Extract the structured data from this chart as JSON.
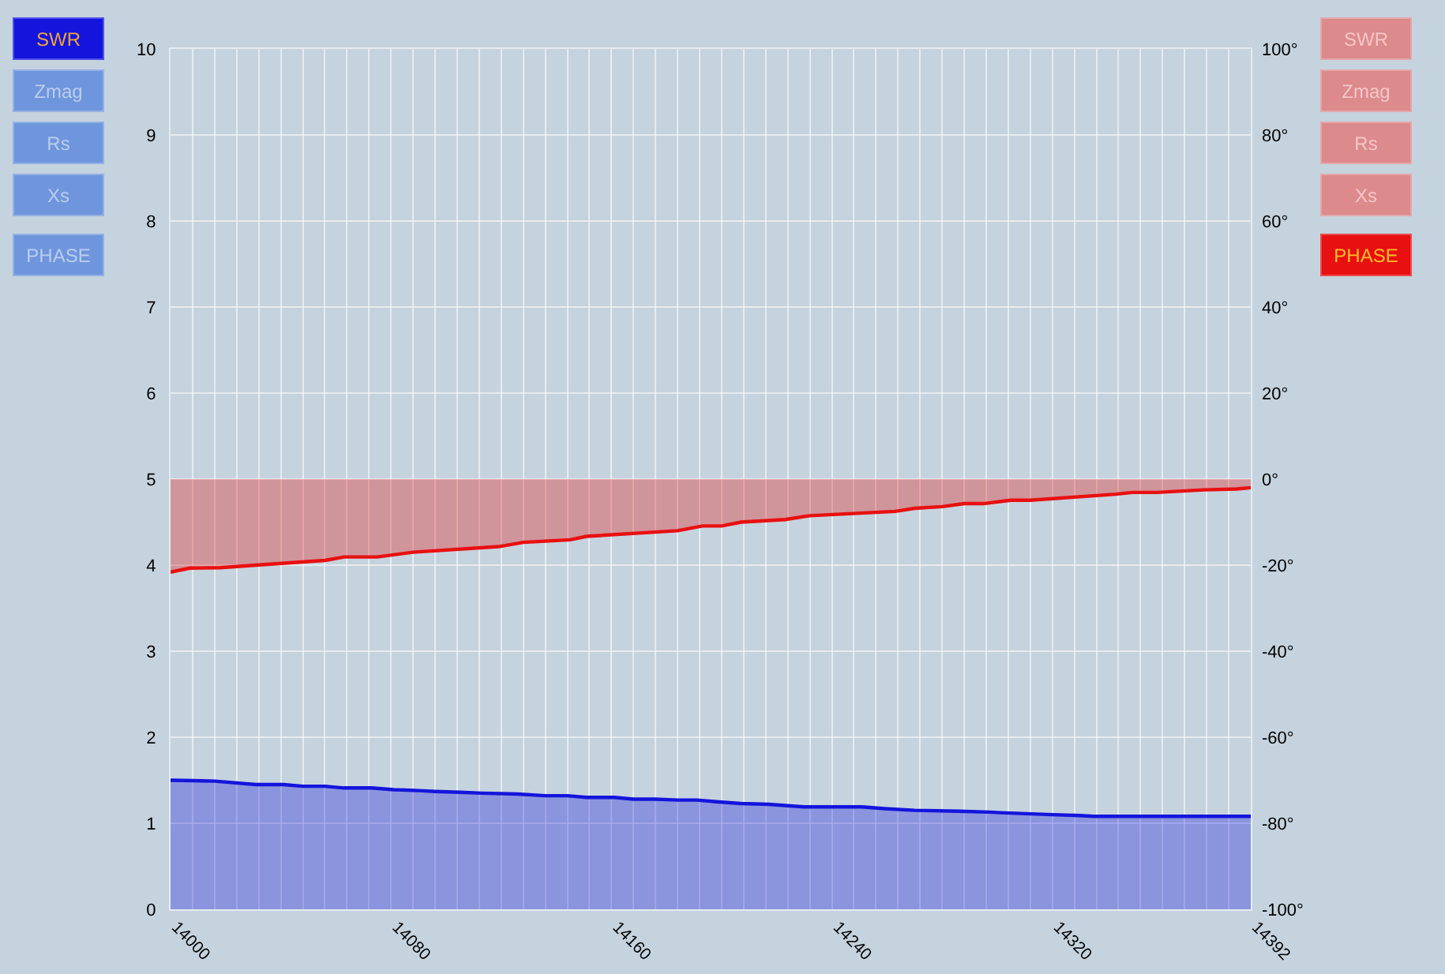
{
  "chart_data": {
    "type": "area",
    "annotations": [
      "Zmag",
      "Rs",
      "Xs",
      "PHASE",
      "SWR",
      "Zmag",
      "Rs",
      "Xs"
    ],
    "xlim": [
      14000,
      14392
    ],
    "xticks": [
      14000,
      {
        "value": 14008,
        "label": null
      },
      {
        "value": 14016,
        "label": null
      },
      {
        "value": 14024,
        "label": null
      },
      {
        "value": 14032,
        "label": null
      },
      {
        "value": 14040,
        "label": null
      },
      {
        "value": 14048,
        "label": null
      },
      {
        "value": 14056,
        "label": null
      },
      {
        "value": 14064,
        "label": null
      },
      {
        "value": 14072,
        "label": null
      },
      14080,
      {
        "value": 14088,
        "label": null
      },
      {
        "value": 14096,
        "label": null
      },
      {
        "value": 14104,
        "label": null
      },
      {
        "value": 14112,
        "label": null
      },
      {
        "value": 14120,
        "label": null
      },
      {
        "value": 14128,
        "label": null
      },
      {
        "value": 14136,
        "label": null
      },
      {
        "value": 14144,
        "label": null
      },
      {
        "value": 14152,
        "label": null
      },
      14160,
      {
        "value": 14168,
        "label": null
      },
      {
        "value": 14176,
        "label": null
      },
      {
        "value": 14184,
        "label": null
      },
      {
        "value": 14192,
        "label": null
      },
      {
        "value": 14200,
        "label": null
      },
      {
        "value": 14208,
        "label": null
      },
      {
        "value": 14216,
        "label": null
      },
      {
        "value": 14224,
        "label": null
      },
      {
        "value": 14232,
        "label": null
      },
      14240,
      {
        "value": 14248,
        "label": null
      },
      {
        "value": 14256,
        "label": null
      },
      {
        "value": 14264,
        "label": null
      },
      {
        "value": 14272,
        "label": null
      },
      {
        "value": 14280,
        "label": null
      },
      {
        "value": 14288,
        "label": null
      },
      {
        "value": 14296,
        "label": null
      },
      {
        "value": 14304,
        "label": null
      },
      {
        "value": 14312,
        "label": null
      },
      14320,
      {
        "value": 14328,
        "label": null
      },
      {
        "value": 14336,
        "label": null
      },
      {
        "value": 14344,
        "label": null
      },
      {
        "value": 14352,
        "label": null
      },
      {
        "value": 14360,
        "label": null
      },
      {
        "value": 14368,
        "label": null
      },
      {
        "value": 14376,
        "label": null
      },
      {
        "value": 14384,
        "label": null
      },
      14392
    ],
    "ylim": [
      0,
      10
    ],
    "yticks": [
      0,
      1,
      2,
      3,
      4,
      5,
      6,
      7,
      8,
      9,
      10
    ],
    "y2lim": [
      -100,
      100
    ],
    "y2ticks": [
      {
        "value": -100,
        "label": "-100°"
      },
      {
        "value": -80,
        "label": "-80°"
      },
      {
        "value": -60,
        "label": "-60°"
      },
      {
        "value": -40,
        "label": "-40°"
      },
      {
        "value": -20,
        "label": "-20°"
      },
      {
        "value": 0,
        "label": "0°"
      },
      {
        "value": 20,
        "label": "20°"
      },
      {
        "value": 40,
        "label": "40°"
      },
      {
        "value": 60,
        "label": "60°"
      },
      {
        "value": 80,
        "label": "80°"
      },
      {
        "value": 100,
        "label": "100°"
      }
    ],
    "grid": true,
    "series": [
      {
        "name": "SWR",
        "color": "#1414dc",
        "axis": "y",
        "x": [
          14000,
          14016,
          14031,
          14041,
          14048,
          14056,
          14063,
          14073,
          14081,
          14090,
          14096,
          14105,
          14113,
          14126,
          14136,
          14144,
          14151,
          14161,
          14168,
          14176,
          14184,
          14191,
          14198,
          14207,
          14217,
          14230,
          14251,
          14259,
          14270,
          14286,
          14297,
          14303,
          14320,
          14330,
          14335,
          14392
        ],
        "values": [
          1.5,
          1.49,
          1.45,
          1.45,
          1.43,
          1.43,
          1.41,
          1.41,
          1.39,
          1.38,
          1.37,
          1.36,
          1.35,
          1.34,
          1.32,
          1.32,
          1.3,
          1.3,
          1.28,
          1.28,
          1.27,
          1.27,
          1.25,
          1.23,
          1.22,
          1.19,
          1.19,
          1.17,
          1.15,
          1.14,
          1.13,
          1.12,
          1.1,
          1.09,
          1.08,
          1.08
        ]
      },
      {
        "name": "PHASE",
        "color": "#e81010",
        "axis": "y2",
        "x": [
          14000,
          14007,
          14018,
          14031,
          14056,
          14063,
          14075,
          14088,
          14119,
          14128,
          14145,
          14151,
          14184,
          14193,
          14200,
          14207,
          14223,
          14232,
          14263,
          14270,
          14280,
          14288,
          14295,
          14305,
          14312,
          14343,
          14349,
          14358,
          14375,
          14387,
          14392
        ],
        "values": [
          -21.6,
          -20.7,
          -20.6,
          -20.0,
          -18.9,
          -18.1,
          -18.1,
          -17.0,
          -15.7,
          -14.7,
          -14.1,
          -13.3,
          -12.0,
          -10.9,
          -10.9,
          -10.0,
          -9.4,
          -8.5,
          -7.5,
          -6.8,
          -6.4,
          -5.7,
          -5.7,
          -4.9,
          -4.9,
          -3.5,
          -3.1,
          -3.1,
          -2.5,
          -2.3,
          -2.0
        ]
      }
    ]
  }
}
